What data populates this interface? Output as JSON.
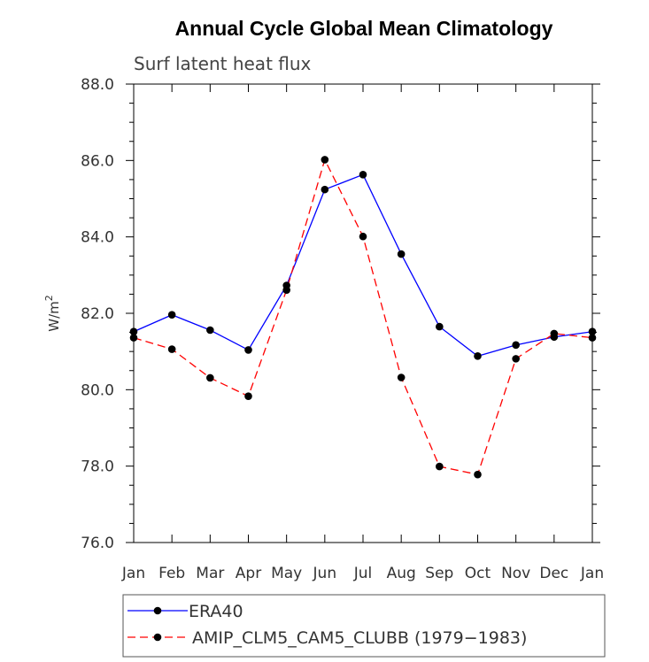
{
  "chart_data": {
    "type": "line",
    "title": "Annual Cycle Global Mean Climatology",
    "subtitle": "Surf latent heat flux",
    "xlabel": "",
    "ylabel": "W/m",
    "ylabel_superscript": "2",
    "categories": [
      "Jan",
      "Feb",
      "Mar",
      "Apr",
      "May",
      "Jun",
      "Jul",
      "Aug",
      "Sep",
      "Oct",
      "Nov",
      "Dec",
      "Jan"
    ],
    "ylim": [
      76.0,
      88.0
    ],
    "yticks": [
      "76.0",
      "78.0",
      "80.0",
      "82.0",
      "84.0",
      "86.0",
      "88.0"
    ],
    "series": [
      {
        "name": "ERA40",
        "color": "#0000ff",
        "dashed": false,
        "values": [
          81.52,
          81.96,
          81.56,
          81.04,
          82.73,
          85.24,
          85.63,
          83.55,
          81.65,
          80.88,
          81.17,
          81.38,
          81.52
        ]
      },
      {
        "name": "AMIP_CLM5_CAM5_CLUBB (1979-1983)",
        "color": "#ff0000",
        "dashed": true,
        "values": [
          81.36,
          81.06,
          80.31,
          79.83,
          82.61,
          86.02,
          84.01,
          80.32,
          77.99,
          77.78,
          80.81,
          81.47,
          81.36
        ]
      }
    ],
    "legend": {
      "placement": "bottom",
      "entries": [
        "ERA40",
        "AMIP_CLM5_CAM5_CLUBB (1979−1983)"
      ]
    }
  }
}
